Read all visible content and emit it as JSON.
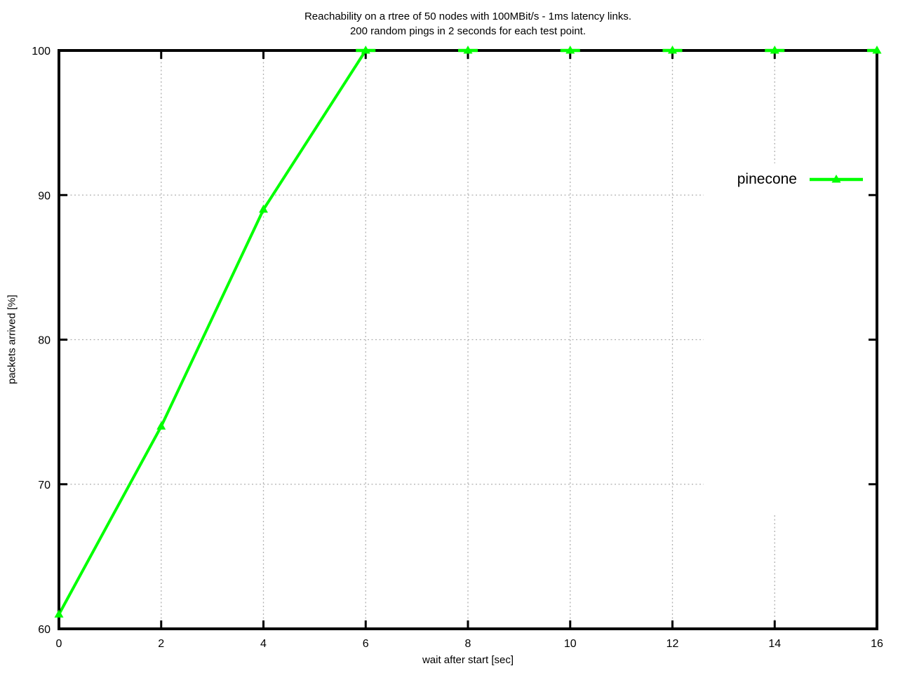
{
  "colors": {
    "series": "#00ff00",
    "grid": "#b0b0b0",
    "axis": "#000000",
    "background": "#ffffff",
    "text": "#000000"
  },
  "chart_data": {
    "type": "line",
    "title": "Reachability on a rtree of 50 nodes with 100MBit/s - 1ms latency links.",
    "subtitle": "200 random pings in 2 seconds for each test point.",
    "xlabel": "wait after start [sec]",
    "ylabel": "packets arrived [%]",
    "x": [
      0,
      2,
      4,
      6,
      8,
      10,
      12,
      14,
      16
    ],
    "series": [
      {
        "name": "pinecone",
        "values": [
          61,
          74,
          89,
          100,
          100,
          100,
          100,
          100,
          100
        ]
      }
    ],
    "xlim": [
      0,
      16
    ],
    "ylim": [
      60,
      100
    ],
    "x_ticks": [
      0,
      2,
      4,
      6,
      8,
      10,
      12,
      14,
      16
    ],
    "y_ticks": [
      60,
      70,
      80,
      90,
      100
    ],
    "grid": true,
    "grid_style": "dotted",
    "legend_position": "right-middle",
    "legend_clears_grid": true,
    "marker": "filled-triangle-up"
  }
}
